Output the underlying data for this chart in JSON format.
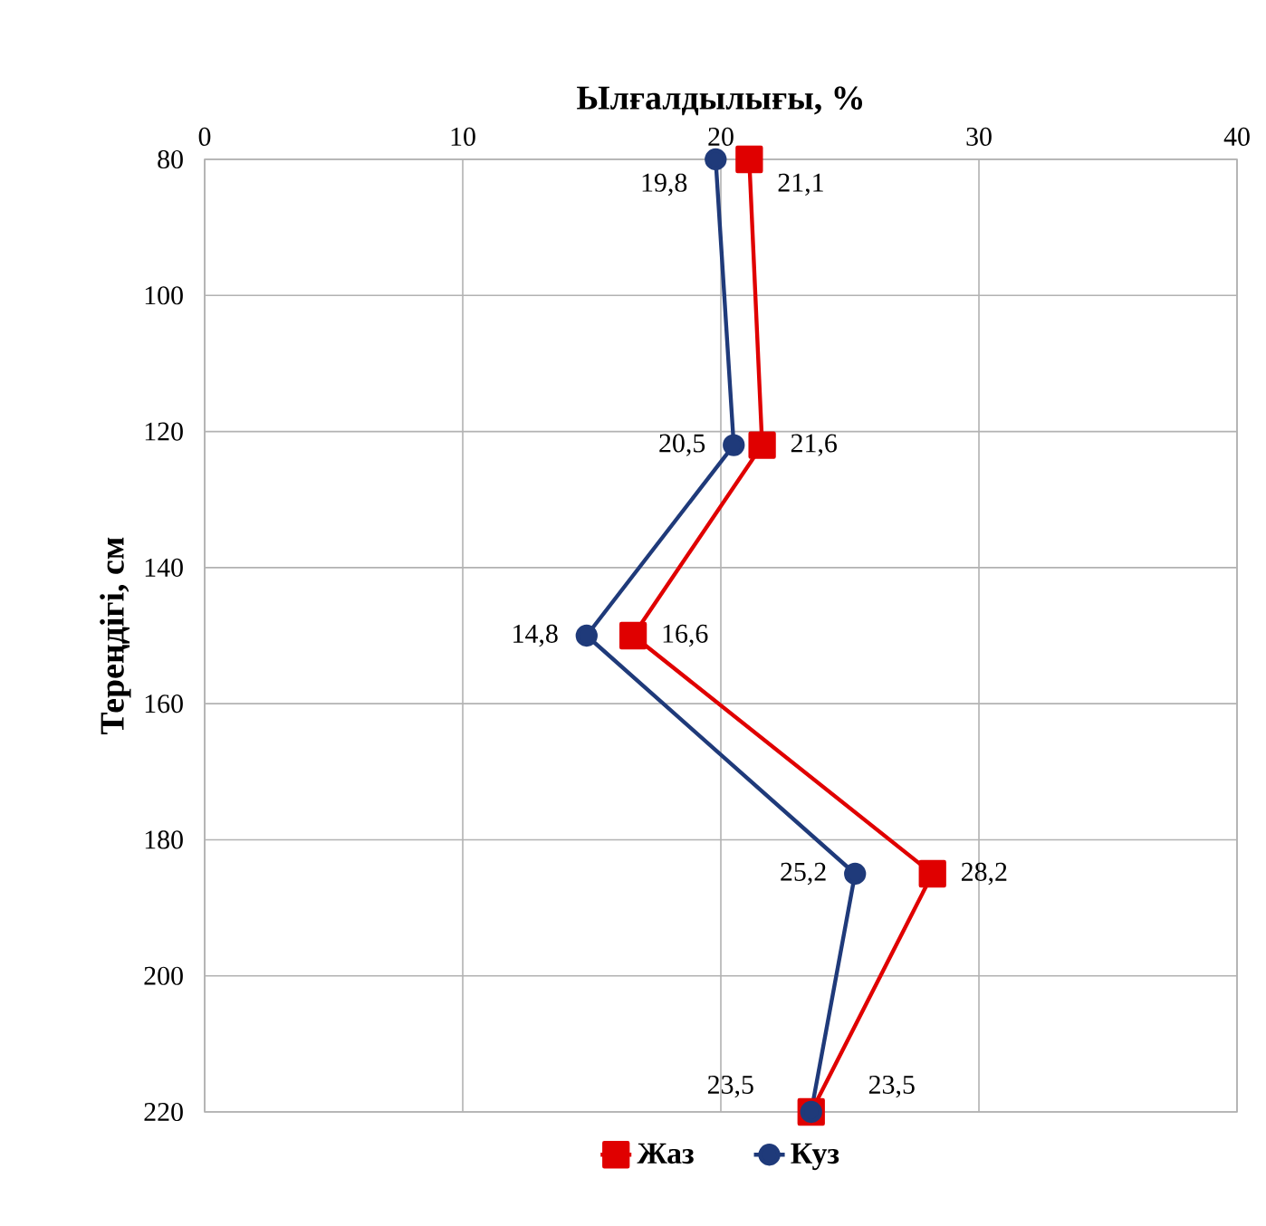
{
  "chart_data": {
    "type": "line",
    "xlabel": "Ылғалдылығы, %",
    "ylabel": "Тереңдігі, см",
    "xlim": [
      0,
      40
    ],
    "xticks": [
      0,
      10,
      20,
      30,
      40
    ],
    "ylim": [
      220,
      80
    ],
    "yticks": [
      80,
      100,
      120,
      140,
      160,
      180,
      200,
      220
    ],
    "grid": true,
    "legend": "bottom",
    "line_style": "solid",
    "series": [
      {
        "name": "Жаз",
        "color": "#e00000",
        "marker": "square",
        "x": [
          21.1,
          21.6,
          16.6,
          28.2,
          23.5
        ],
        "values": [
          80,
          122,
          150,
          185,
          220
        ]
      },
      {
        "name": "Куз",
        "color": "#1f3a7a",
        "marker": "circle",
        "x": [
          19.8,
          20.5,
          14.8,
          25.2,
          23.5
        ],
        "values": [
          80,
          122,
          150,
          185,
          220
        ]
      }
    ],
    "annotations": [
      {
        "text": "21,1",
        "x": 21.1,
        "y": 80
      },
      {
        "text": "19,8",
        "x": 19.8,
        "y": 80
      },
      {
        "text": "21,6",
        "x": 21.6,
        "y": 122
      },
      {
        "text": "20,5",
        "x": 20.5,
        "y": 122
      },
      {
        "text": "16,6",
        "x": 16.6,
        "y": 150
      },
      {
        "text": "14,8",
        "x": 14.8,
        "y": 150
      },
      {
        "text": "28,2",
        "x": 28.2,
        "y": 185
      },
      {
        "text": "25,2",
        "x": 25.2,
        "y": 185
      },
      {
        "text": "23,5",
        "x": 23.5,
        "y": 220
      },
      {
        "text": "23,5",
        "x": 23.5,
        "y": 220
      }
    ]
  }
}
